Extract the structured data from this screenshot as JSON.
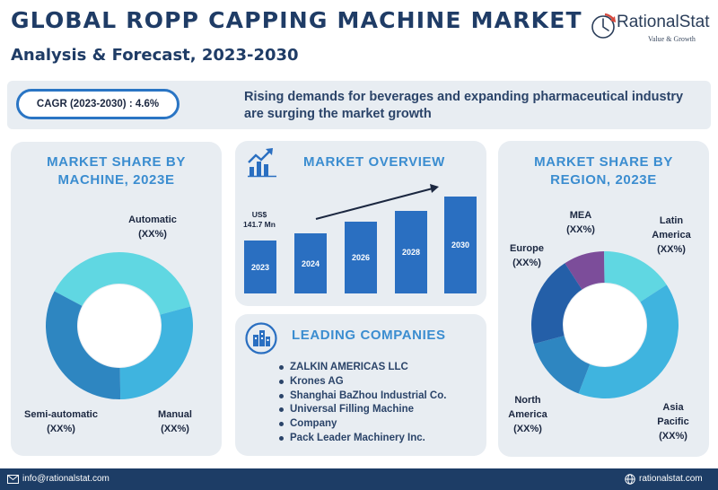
{
  "header": {
    "title": "GLOBAL ROPP CAPPING MACHINE MARKET",
    "subtitle": "Analysis & Forecast, 2023-2030",
    "logo_name": "RationalStat",
    "logo_tagline": "Value & Growth"
  },
  "banner": {
    "cagr": "CAGR (2023-2030) : 4.6%",
    "text": "Rising demands for beverages and expanding pharmaceutical industry are surging the market growth"
  },
  "machine_share": {
    "heading_line1": "MARKET SHARE BY",
    "heading_line2": "MACHINE, 2023E",
    "segments": [
      {
        "name": "Automatic",
        "value": "(XX%)",
        "share": 0.38,
        "color": "#60d7e2"
      },
      {
        "name": "Manual",
        "value": "(XX%)",
        "share": 0.29,
        "color": "#3fb4df"
      },
      {
        "name": "Semi-automatic",
        "value": "(XX%)",
        "share": 0.33,
        "color": "#2e86c1"
      }
    ]
  },
  "market_overview": {
    "heading": "MARKET OVERVIEW",
    "value_label_line1": "US$",
    "value_label_line2": "141.7 Mn",
    "icon": "growth-chart-icon",
    "bars": [
      {
        "year": "2023",
        "level": 0.55
      },
      {
        "year": "2024",
        "level": 0.62
      },
      {
        "year": "2026",
        "level": 0.74
      },
      {
        "year": "2028",
        "level": 0.85
      },
      {
        "year": "2030",
        "level": 1.0
      }
    ],
    "bar_color": "#2a6fc1"
  },
  "leading_companies": {
    "heading": "LEADING COMPANIES",
    "icon": "buildings-icon",
    "items": [
      "ZALKIN AMERICAS LLC",
      "Krones AG",
      "Shanghai BaZhou Industrial Co.",
      "Universal Filling Machine",
      "Company",
      "Pack Leader Machinery Inc."
    ]
  },
  "region_share": {
    "heading_line1": "MARKET SHARE BY",
    "heading_line2": "REGION, 2023E",
    "segments": [
      {
        "name": "MEA",
        "value": "(XX%)",
        "share": 0.09,
        "color": "#7c4d9a"
      },
      {
        "name": "Latin America",
        "line1": "Latin",
        "line2": "America",
        "value": "(XX%)",
        "share": 0.16,
        "color": "#60d7e2"
      },
      {
        "name": "Asia Pacific",
        "line1": "Asia",
        "line2": "Pacific",
        "value": "(XX%)",
        "share": 0.4,
        "color": "#3fb4df"
      },
      {
        "name": "North America",
        "line1": "North",
        "line2": "America",
        "value": "(XX%)",
        "share": 0.15,
        "color": "#2e86c1"
      },
      {
        "name": "Europe",
        "value": "(XX%)",
        "share": 0.2,
        "color": "#245fa8"
      }
    ]
  },
  "footer": {
    "email": "info@rationalstat.com",
    "website": "rationalstat.com"
  }
}
